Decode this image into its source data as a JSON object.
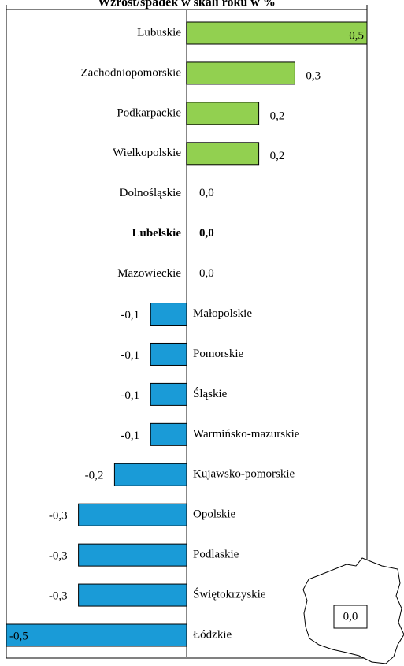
{
  "chart_data": {
    "type": "hbar",
    "title": "Wzrost/spadek w skali roku w %",
    "categories": [
      "Lubuskie",
      "Zachodniopomorskie",
      "Podkarpackie",
      "Wielkopolskie",
      "Dolnośląskie",
      "Lubelskie",
      "Mazowieckie",
      "Małopolskie",
      "Pomorskie",
      "Śląskie",
      "Warmińsko-mazurskie",
      "Kujawsko-pomorskie",
      "Opolskie",
      "Podlaskie",
      "Świętokrzyskie",
      "Łódzkie"
    ],
    "values": [
      0.5,
      0.3,
      0.2,
      0.2,
      0.0,
      0.0,
      0.0,
      -0.1,
      -0.1,
      -0.1,
      -0.1,
      -0.2,
      -0.3,
      -0.3,
      -0.3,
      -0.5
    ],
    "value_labels": [
      "0,5",
      "0,3",
      "0,2",
      "0,2",
      "0,0",
      "0,0",
      "0,0",
      "-0,1",
      "-0,1",
      "-0,1",
      "-0,1",
      "-0,2",
      "-0,3",
      "-0,3",
      "-0,3",
      "-0,5"
    ],
    "positive_color": "#92d050",
    "negative_color": "#1a9bd7",
    "highlight": "Lubelskie",
    "xlim": [
      -0.5,
      0.5
    ],
    "map_label": "0,0"
  }
}
